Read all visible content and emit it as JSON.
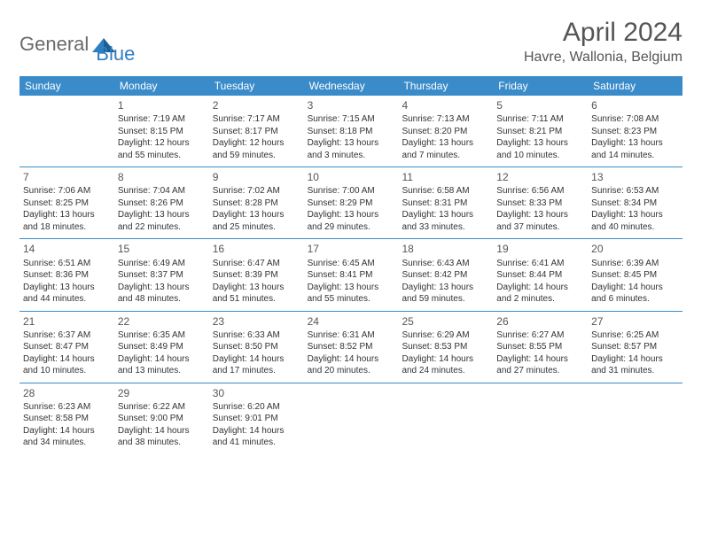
{
  "logo": {
    "part1": "General",
    "part2": "Blue"
  },
  "title": "April 2024",
  "location": "Havre, Wallonia, Belgium",
  "colors": {
    "header_bg": "#3a8bc9",
    "header_text": "#ffffff",
    "logo_gray": "#6a6a6a",
    "logo_blue": "#2f7ec1",
    "text": "#333333",
    "border": "#3a8bc9"
  },
  "day_names": [
    "Sunday",
    "Monday",
    "Tuesday",
    "Wednesday",
    "Thursday",
    "Friday",
    "Saturday"
  ],
  "weeks": [
    [
      {
        "day": "",
        "sunrise": "",
        "sunset": "",
        "daylight1": "",
        "daylight2": ""
      },
      {
        "day": "1",
        "sunrise": "Sunrise: 7:19 AM",
        "sunset": "Sunset: 8:15 PM",
        "daylight1": "Daylight: 12 hours",
        "daylight2": "and 55 minutes."
      },
      {
        "day": "2",
        "sunrise": "Sunrise: 7:17 AM",
        "sunset": "Sunset: 8:17 PM",
        "daylight1": "Daylight: 12 hours",
        "daylight2": "and 59 minutes."
      },
      {
        "day": "3",
        "sunrise": "Sunrise: 7:15 AM",
        "sunset": "Sunset: 8:18 PM",
        "daylight1": "Daylight: 13 hours",
        "daylight2": "and 3 minutes."
      },
      {
        "day": "4",
        "sunrise": "Sunrise: 7:13 AM",
        "sunset": "Sunset: 8:20 PM",
        "daylight1": "Daylight: 13 hours",
        "daylight2": "and 7 minutes."
      },
      {
        "day": "5",
        "sunrise": "Sunrise: 7:11 AM",
        "sunset": "Sunset: 8:21 PM",
        "daylight1": "Daylight: 13 hours",
        "daylight2": "and 10 minutes."
      },
      {
        "day": "6",
        "sunrise": "Sunrise: 7:08 AM",
        "sunset": "Sunset: 8:23 PM",
        "daylight1": "Daylight: 13 hours",
        "daylight2": "and 14 minutes."
      }
    ],
    [
      {
        "day": "7",
        "sunrise": "Sunrise: 7:06 AM",
        "sunset": "Sunset: 8:25 PM",
        "daylight1": "Daylight: 13 hours",
        "daylight2": "and 18 minutes."
      },
      {
        "day": "8",
        "sunrise": "Sunrise: 7:04 AM",
        "sunset": "Sunset: 8:26 PM",
        "daylight1": "Daylight: 13 hours",
        "daylight2": "and 22 minutes."
      },
      {
        "day": "9",
        "sunrise": "Sunrise: 7:02 AM",
        "sunset": "Sunset: 8:28 PM",
        "daylight1": "Daylight: 13 hours",
        "daylight2": "and 25 minutes."
      },
      {
        "day": "10",
        "sunrise": "Sunrise: 7:00 AM",
        "sunset": "Sunset: 8:29 PM",
        "daylight1": "Daylight: 13 hours",
        "daylight2": "and 29 minutes."
      },
      {
        "day": "11",
        "sunrise": "Sunrise: 6:58 AM",
        "sunset": "Sunset: 8:31 PM",
        "daylight1": "Daylight: 13 hours",
        "daylight2": "and 33 minutes."
      },
      {
        "day": "12",
        "sunrise": "Sunrise: 6:56 AM",
        "sunset": "Sunset: 8:33 PM",
        "daylight1": "Daylight: 13 hours",
        "daylight2": "and 37 minutes."
      },
      {
        "day": "13",
        "sunrise": "Sunrise: 6:53 AM",
        "sunset": "Sunset: 8:34 PM",
        "daylight1": "Daylight: 13 hours",
        "daylight2": "and 40 minutes."
      }
    ],
    [
      {
        "day": "14",
        "sunrise": "Sunrise: 6:51 AM",
        "sunset": "Sunset: 8:36 PM",
        "daylight1": "Daylight: 13 hours",
        "daylight2": "and 44 minutes."
      },
      {
        "day": "15",
        "sunrise": "Sunrise: 6:49 AM",
        "sunset": "Sunset: 8:37 PM",
        "daylight1": "Daylight: 13 hours",
        "daylight2": "and 48 minutes."
      },
      {
        "day": "16",
        "sunrise": "Sunrise: 6:47 AM",
        "sunset": "Sunset: 8:39 PM",
        "daylight1": "Daylight: 13 hours",
        "daylight2": "and 51 minutes."
      },
      {
        "day": "17",
        "sunrise": "Sunrise: 6:45 AM",
        "sunset": "Sunset: 8:41 PM",
        "daylight1": "Daylight: 13 hours",
        "daylight2": "and 55 minutes."
      },
      {
        "day": "18",
        "sunrise": "Sunrise: 6:43 AM",
        "sunset": "Sunset: 8:42 PM",
        "daylight1": "Daylight: 13 hours",
        "daylight2": "and 59 minutes."
      },
      {
        "day": "19",
        "sunrise": "Sunrise: 6:41 AM",
        "sunset": "Sunset: 8:44 PM",
        "daylight1": "Daylight: 14 hours",
        "daylight2": "and 2 minutes."
      },
      {
        "day": "20",
        "sunrise": "Sunrise: 6:39 AM",
        "sunset": "Sunset: 8:45 PM",
        "daylight1": "Daylight: 14 hours",
        "daylight2": "and 6 minutes."
      }
    ],
    [
      {
        "day": "21",
        "sunrise": "Sunrise: 6:37 AM",
        "sunset": "Sunset: 8:47 PM",
        "daylight1": "Daylight: 14 hours",
        "daylight2": "and 10 minutes."
      },
      {
        "day": "22",
        "sunrise": "Sunrise: 6:35 AM",
        "sunset": "Sunset: 8:49 PM",
        "daylight1": "Daylight: 14 hours",
        "daylight2": "and 13 minutes."
      },
      {
        "day": "23",
        "sunrise": "Sunrise: 6:33 AM",
        "sunset": "Sunset: 8:50 PM",
        "daylight1": "Daylight: 14 hours",
        "daylight2": "and 17 minutes."
      },
      {
        "day": "24",
        "sunrise": "Sunrise: 6:31 AM",
        "sunset": "Sunset: 8:52 PM",
        "daylight1": "Daylight: 14 hours",
        "daylight2": "and 20 minutes."
      },
      {
        "day": "25",
        "sunrise": "Sunrise: 6:29 AM",
        "sunset": "Sunset: 8:53 PM",
        "daylight1": "Daylight: 14 hours",
        "daylight2": "and 24 minutes."
      },
      {
        "day": "26",
        "sunrise": "Sunrise: 6:27 AM",
        "sunset": "Sunset: 8:55 PM",
        "daylight1": "Daylight: 14 hours",
        "daylight2": "and 27 minutes."
      },
      {
        "day": "27",
        "sunrise": "Sunrise: 6:25 AM",
        "sunset": "Sunset: 8:57 PM",
        "daylight1": "Daylight: 14 hours",
        "daylight2": "and 31 minutes."
      }
    ],
    [
      {
        "day": "28",
        "sunrise": "Sunrise: 6:23 AM",
        "sunset": "Sunset: 8:58 PM",
        "daylight1": "Daylight: 14 hours",
        "daylight2": "and 34 minutes."
      },
      {
        "day": "29",
        "sunrise": "Sunrise: 6:22 AM",
        "sunset": "Sunset: 9:00 PM",
        "daylight1": "Daylight: 14 hours",
        "daylight2": "and 38 minutes."
      },
      {
        "day": "30",
        "sunrise": "Sunrise: 6:20 AM",
        "sunset": "Sunset: 9:01 PM",
        "daylight1": "Daylight: 14 hours",
        "daylight2": "and 41 minutes."
      },
      {
        "day": "",
        "sunrise": "",
        "sunset": "",
        "daylight1": "",
        "daylight2": ""
      },
      {
        "day": "",
        "sunrise": "",
        "sunset": "",
        "daylight1": "",
        "daylight2": ""
      },
      {
        "day": "",
        "sunrise": "",
        "sunset": "",
        "daylight1": "",
        "daylight2": ""
      },
      {
        "day": "",
        "sunrise": "",
        "sunset": "",
        "daylight1": "",
        "daylight2": ""
      }
    ]
  ]
}
